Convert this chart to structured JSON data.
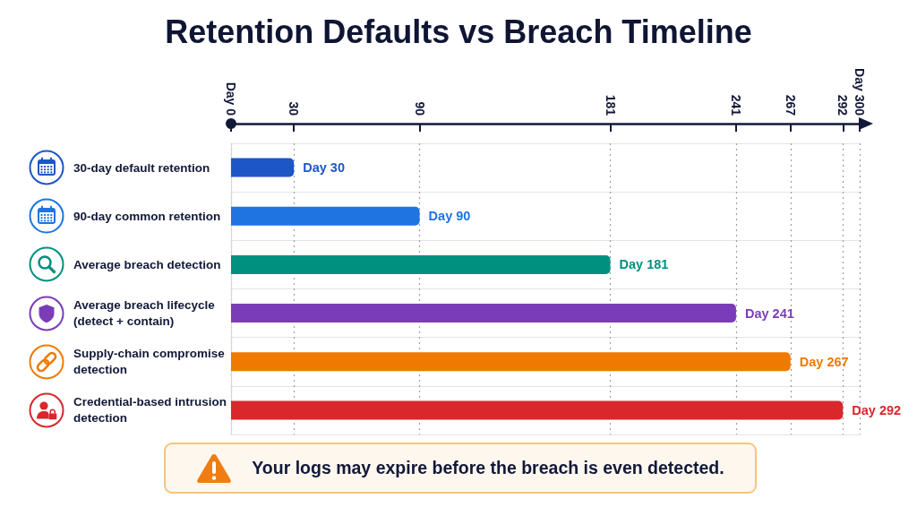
{
  "chart_data": {
    "type": "bar",
    "orientation": "horizontal",
    "title": "Retention Defaults vs Breach Timeline",
    "categories": [
      "30-day default retention",
      "90-day common retention",
      "Average breach detection",
      "Average breach lifecycle (detect + contain)",
      "Supply-chain compromise detection",
      "Credential-based intrusion detection"
    ],
    "values": [
      30,
      90,
      181,
      241,
      267,
      292
    ],
    "colors": [
      "#1d56c6",
      "#1f74e2",
      "#00907f",
      "#7a3cb9",
      "#ee7b00",
      "#d9272c"
    ],
    "value_labels": [
      "Day 30",
      "Day 90",
      "Day 181",
      "Day 241",
      "Day 267",
      "Day 292"
    ],
    "xlim": [
      0,
      300
    ],
    "xticks": [
      {
        "value": 0,
        "label": "Day 0"
      },
      30,
      90,
      181,
      241,
      267,
      292,
      {
        "value": 300,
        "label": "Day 300"
      }
    ],
    "grid": true,
    "annotations": [
      "Your logs may expire before the breach is even detected."
    ]
  }
}
